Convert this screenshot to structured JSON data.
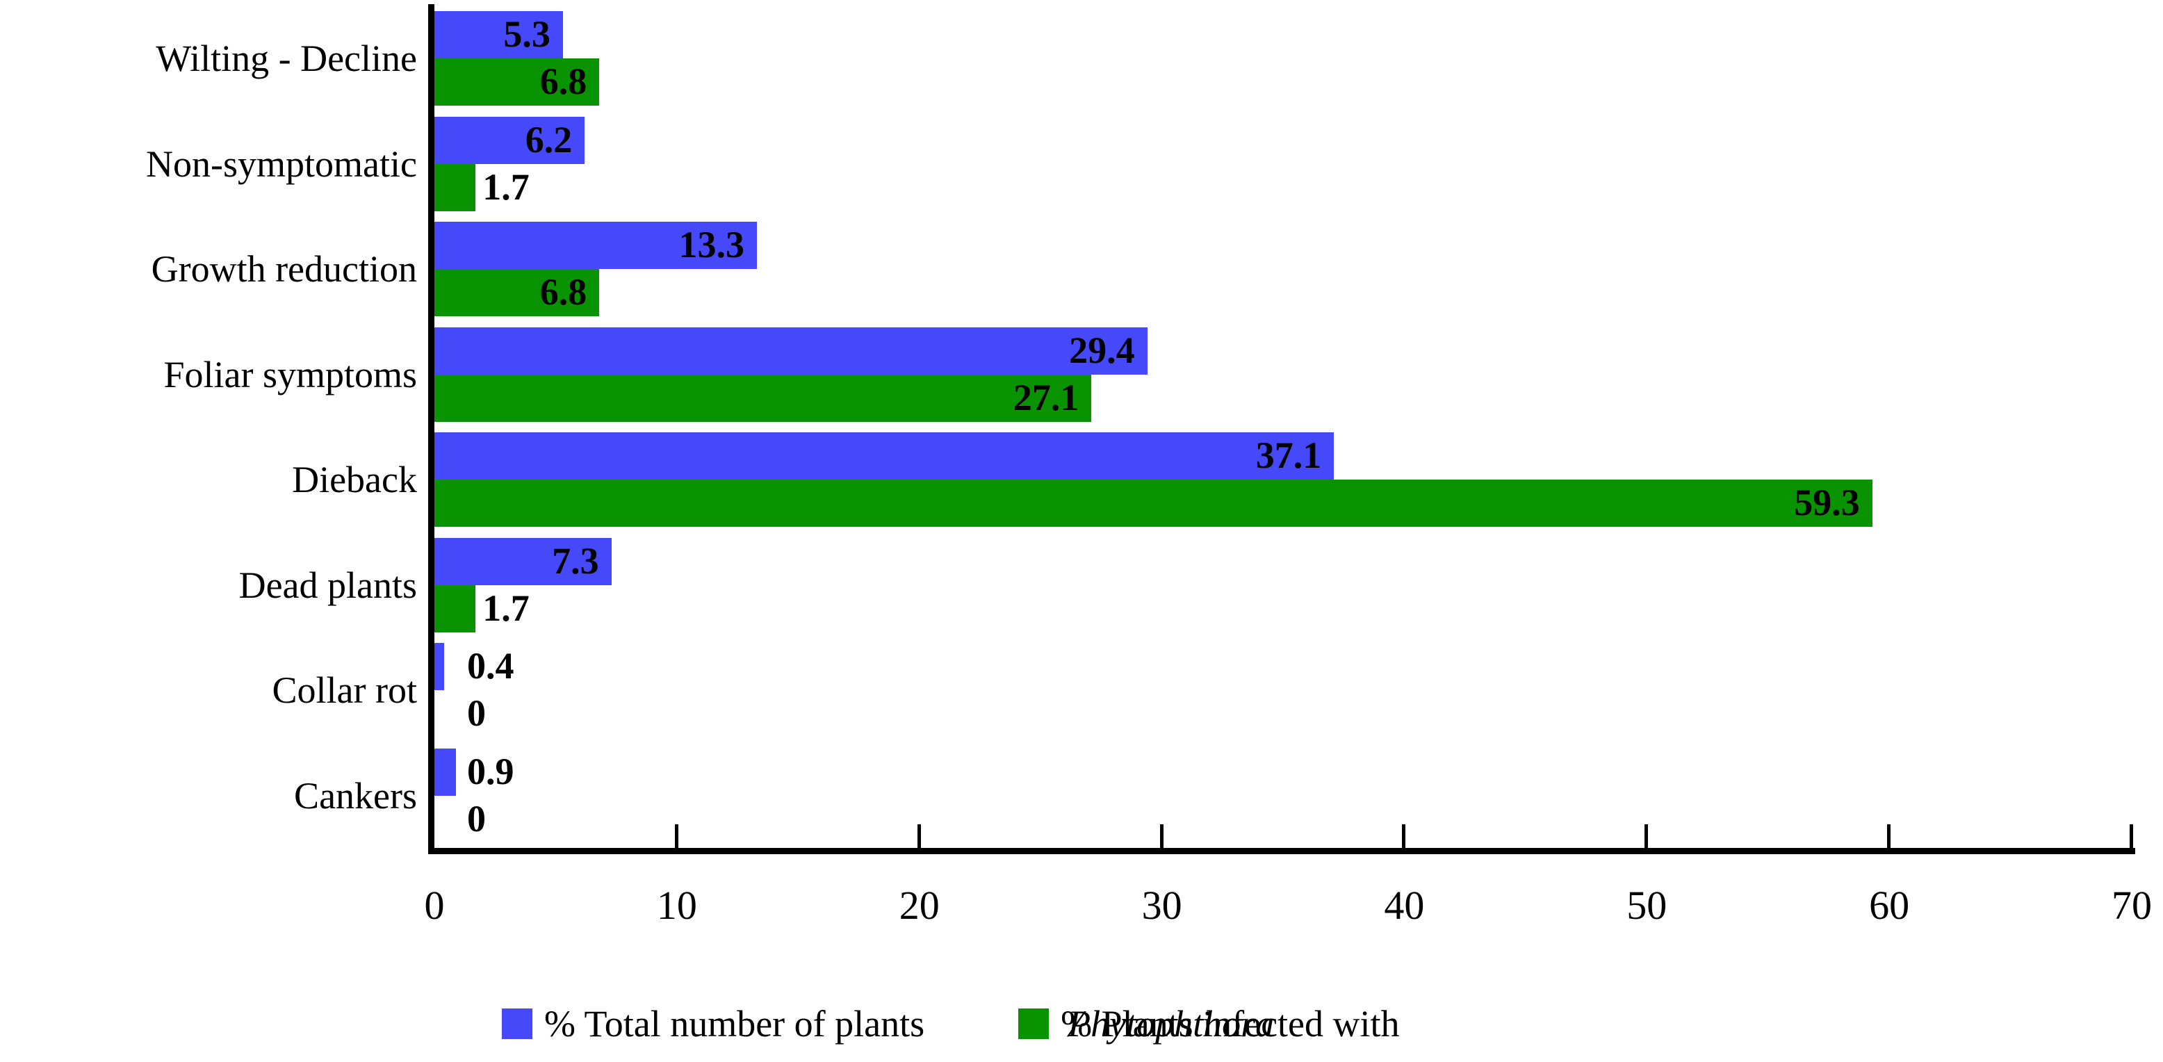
{
  "chart_data": {
    "type": "bar",
    "orientation": "horizontal",
    "title": "",
    "xlabel": "",
    "ylabel": "",
    "categories": [
      "Wilting - Decline",
      "Non-symptomatic",
      "Growth reduction",
      "Foliar symptoms",
      "Dieback",
      "Dead plants",
      "Collar rot",
      "Cankers"
    ],
    "series": [
      {
        "name": "% Total number of plants",
        "color": "#4649FA",
        "values": [
          5.3,
          6.2,
          13.3,
          29.4,
          37.1,
          7.3,
          0.4,
          0.9
        ]
      },
      {
        "name": "% Plants infected with Phytophthora",
        "name_regular": "% Plants infected with",
        "name_italic": "Phytophthora",
        "color": "#0A9300",
        "values": [
          6.8,
          1.7,
          6.8,
          27.1,
          59.3,
          1.7,
          0,
          0
        ]
      }
    ],
    "xlim": [
      0,
      70
    ],
    "xticks": [
      0,
      10,
      20,
      30,
      40,
      50,
      60,
      70
    ],
    "grid": false,
    "legend_position": "bottom",
    "axis_color": "#000000",
    "data_label_color": "#000000",
    "background_color": "#FFFFFF"
  }
}
